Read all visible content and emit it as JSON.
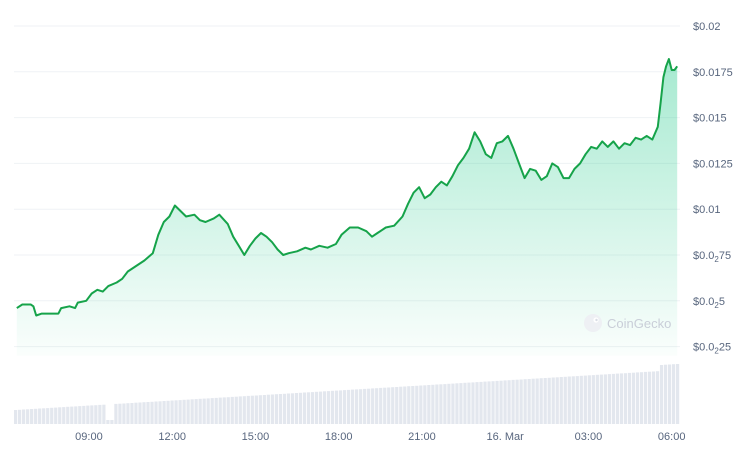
{
  "chart_data": {
    "type": "area",
    "title": "",
    "xlabel": "",
    "ylabel": "",
    "ylim": [
      0.002,
      0.02
    ],
    "colors": {
      "line": "#16a34a",
      "fill": "#16c784",
      "grid": "#eff2f5",
      "volume": "#e3e7ee"
    },
    "watermark": "CoinGecko",
    "y_ticks": [
      {
        "value": 0.02,
        "prefix": "$0.02",
        "sub": "",
        "suffix": ""
      },
      {
        "value": 0.0175,
        "prefix": "$0.0175",
        "sub": "",
        "suffix": ""
      },
      {
        "value": 0.015,
        "prefix": "$0.015",
        "sub": "",
        "suffix": ""
      },
      {
        "value": 0.0125,
        "prefix": "$0.0125",
        "sub": "",
        "suffix": ""
      },
      {
        "value": 0.01,
        "prefix": "$0.01",
        "sub": "",
        "suffix": ""
      },
      {
        "value": 0.0075,
        "prefix": "$0.0",
        "sub": "2",
        "suffix": "75"
      },
      {
        "value": 0.005,
        "prefix": "$0.0",
        "sub": "2",
        "suffix": "5"
      },
      {
        "value": 0.0025,
        "prefix": "$0.0",
        "sub": "2",
        "suffix": "25"
      }
    ],
    "x_ticks": [
      {
        "t": 9,
        "label": "09:00"
      },
      {
        "t": 12,
        "label": "12:00"
      },
      {
        "t": 15,
        "label": "15:00"
      },
      {
        "t": 18,
        "label": "18:00"
      },
      {
        "t": 21,
        "label": "21:00"
      },
      {
        "t": 24,
        "label": "16. Mar"
      },
      {
        "t": 27,
        "label": "03:00"
      },
      {
        "t": 30,
        "label": "06:00"
      }
    ],
    "x_range": [
      6.3,
      30.3
    ],
    "series": [
      {
        "points": [
          [
            6.4,
            0.0046
          ],
          [
            6.6,
            0.0048
          ],
          [
            6.9,
            0.0048
          ],
          [
            7.0,
            0.0047
          ],
          [
            7.1,
            0.0042
          ],
          [
            7.3,
            0.0043
          ],
          [
            7.6,
            0.0043
          ],
          [
            7.9,
            0.0043
          ],
          [
            8.0,
            0.0046
          ],
          [
            8.3,
            0.0047
          ],
          [
            8.5,
            0.0046
          ],
          [
            8.6,
            0.0049
          ],
          [
            8.9,
            0.005
          ],
          [
            9.1,
            0.0054
          ],
          [
            9.3,
            0.0056
          ],
          [
            9.5,
            0.0055
          ],
          [
            9.7,
            0.0058
          ],
          [
            10.0,
            0.006
          ],
          [
            10.2,
            0.0062
          ],
          [
            10.4,
            0.0066
          ],
          [
            10.7,
            0.0069
          ],
          [
            11.0,
            0.0072
          ],
          [
            11.3,
            0.0076
          ],
          [
            11.5,
            0.0086
          ],
          [
            11.7,
            0.0093
          ],
          [
            11.9,
            0.0096
          ],
          [
            12.1,
            0.0102
          ],
          [
            12.3,
            0.0099
          ],
          [
            12.5,
            0.0096
          ],
          [
            12.8,
            0.0097
          ],
          [
            13.0,
            0.0094
          ],
          [
            13.2,
            0.0093
          ],
          [
            13.5,
            0.0095
          ],
          [
            13.7,
            0.0097
          ],
          [
            14.0,
            0.0092
          ],
          [
            14.2,
            0.0085
          ],
          [
            14.4,
            0.008
          ],
          [
            14.6,
            0.0075
          ],
          [
            14.8,
            0.008
          ],
          [
            15.0,
            0.0084
          ],
          [
            15.2,
            0.0087
          ],
          [
            15.4,
            0.0085
          ],
          [
            15.6,
            0.0082
          ],
          [
            15.8,
            0.0078
          ],
          [
            16.0,
            0.0075
          ],
          [
            16.2,
            0.0076
          ],
          [
            16.5,
            0.0077
          ],
          [
            16.8,
            0.0079
          ],
          [
            17.0,
            0.0078
          ],
          [
            17.3,
            0.008
          ],
          [
            17.6,
            0.0079
          ],
          [
            17.9,
            0.0081
          ],
          [
            18.1,
            0.0086
          ],
          [
            18.4,
            0.009
          ],
          [
            18.7,
            0.009
          ],
          [
            19.0,
            0.0088
          ],
          [
            19.2,
            0.0085
          ],
          [
            19.4,
            0.0087
          ],
          [
            19.7,
            0.009
          ],
          [
            20.0,
            0.0091
          ],
          [
            20.3,
            0.0096
          ],
          [
            20.5,
            0.0103
          ],
          [
            20.7,
            0.0109
          ],
          [
            20.9,
            0.0112
          ],
          [
            21.1,
            0.0106
          ],
          [
            21.3,
            0.0108
          ],
          [
            21.5,
            0.0112
          ],
          [
            21.7,
            0.0115
          ],
          [
            21.9,
            0.0113
          ],
          [
            22.1,
            0.0118
          ],
          [
            22.3,
            0.0124
          ],
          [
            22.5,
            0.0128
          ],
          [
            22.7,
            0.0133
          ],
          [
            22.9,
            0.0142
          ],
          [
            23.1,
            0.0137
          ],
          [
            23.3,
            0.013
          ],
          [
            23.5,
            0.0128
          ],
          [
            23.7,
            0.0136
          ],
          [
            23.9,
            0.0137
          ],
          [
            24.1,
            0.014
          ],
          [
            24.3,
            0.0133
          ],
          [
            24.5,
            0.0125
          ],
          [
            24.7,
            0.0117
          ],
          [
            24.9,
            0.0122
          ],
          [
            25.1,
            0.0121
          ],
          [
            25.3,
            0.0116
          ],
          [
            25.5,
            0.0118
          ],
          [
            25.7,
            0.0125
          ],
          [
            25.9,
            0.0123
          ],
          [
            26.1,
            0.0117
          ],
          [
            26.3,
            0.0117
          ],
          [
            26.5,
            0.0122
          ],
          [
            26.7,
            0.0125
          ],
          [
            26.9,
            0.013
          ],
          [
            27.1,
            0.0134
          ],
          [
            27.3,
            0.0133
          ],
          [
            27.5,
            0.0137
          ],
          [
            27.7,
            0.0134
          ],
          [
            27.9,
            0.0137
          ],
          [
            28.1,
            0.0133
          ],
          [
            28.3,
            0.0136
          ],
          [
            28.5,
            0.0135
          ],
          [
            28.7,
            0.0139
          ],
          [
            28.9,
            0.0138
          ],
          [
            29.1,
            0.014
          ],
          [
            29.3,
            0.0138
          ],
          [
            29.5,
            0.0145
          ],
          [
            29.6,
            0.0158
          ],
          [
            29.7,
            0.0172
          ],
          [
            29.8,
            0.0178
          ],
          [
            29.9,
            0.0182
          ],
          [
            30.0,
            0.0176
          ],
          [
            30.1,
            0.0176
          ],
          [
            30.2,
            0.0178
          ]
        ]
      }
    ]
  }
}
